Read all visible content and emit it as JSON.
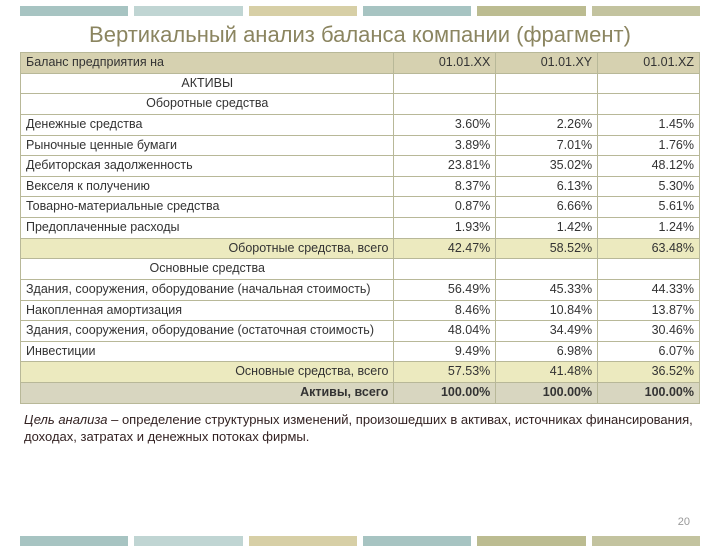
{
  "stripe_colors": [
    "#a7c4c2",
    "#c0d5d3",
    "#d7cfa6",
    "#a7c4c2",
    "#bcbc91",
    "#c3c39f"
  ],
  "title": "Вертикальный анализ баланса компании (фрагмент)",
  "table": {
    "header": {
      "label": "Баланс предприятия на",
      "c1": "01.01.ХХ",
      "c2": "01.01.XY",
      "c3": "01.01.XZ"
    },
    "rows": [
      {
        "type": "section",
        "label": "АКТИВЫ",
        "c1": "",
        "c2": "",
        "c3": ""
      },
      {
        "type": "section",
        "label": "Оборотные средства",
        "c1": "",
        "c2": "",
        "c3": ""
      },
      {
        "type": "data",
        "label": "Денежные средства",
        "c1": "3.60%",
        "c2": "2.26%",
        "c3": "1.45%"
      },
      {
        "type": "data",
        "label": "Рыночные ценные бумаги",
        "c1": "3.89%",
        "c2": "7.01%",
        "c3": "1.76%"
      },
      {
        "type": "data",
        "label": "Дебиторская задолженность",
        "c1": "23.81%",
        "c2": "35.02%",
        "c3": "48.12%"
      },
      {
        "type": "data",
        "label": "Векселя к получению",
        "c1": "8.37%",
        "c2": "6.13%",
        "c3": "5.30%"
      },
      {
        "type": "data",
        "label": "Товарно-материальные средства",
        "c1": "0.87%",
        "c2": "6.66%",
        "c3": "5.61%"
      },
      {
        "type": "data",
        "label": "Предоплаченные расходы",
        "c1": "1.93%",
        "c2": "1.42%",
        "c3": "1.24%"
      },
      {
        "type": "subtotal",
        "label": "Оборотные средства, всего",
        "c1": "42.47%",
        "c2": "58.52%",
        "c3": "63.48%"
      },
      {
        "type": "section",
        "label": "Основные средства",
        "c1": "",
        "c2": "",
        "c3": ""
      },
      {
        "type": "data",
        "label": "Здания, сооружения, оборудование (начальная стоимость)",
        "c1": "56.49%",
        "c2": "45.33%",
        "c3": "44.33%"
      },
      {
        "type": "data",
        "label": "Накопленная амортизация",
        "c1": "8.46%",
        "c2": "10.84%",
        "c3": "13.87%"
      },
      {
        "type": "data",
        "label": "Здания, сооружения, оборудование (остаточная стоимость)",
        "c1": "48.04%",
        "c2": "34.49%",
        "c3": "30.46%"
      },
      {
        "type": "data",
        "label": "Инвестиции",
        "c1": "9.49%",
        "c2": "6.98%",
        "c3": "6.07%"
      },
      {
        "type": "subtotal",
        "label": "Основные средства, всего",
        "c1": "57.53%",
        "c2": "41.48%",
        "c3": "36.52%"
      },
      {
        "type": "total",
        "label": "Активы, всего",
        "c1": "100.00%",
        "c2": "100.00%",
        "c3": "100.00%"
      }
    ]
  },
  "footer_lead": "Цель анализа",
  "footer_rest": " –  определение структурных изменений, произошедших в активах, источниках финансирования, доходах, затратах и денежных потоках фирмы.",
  "page_number": "20"
}
